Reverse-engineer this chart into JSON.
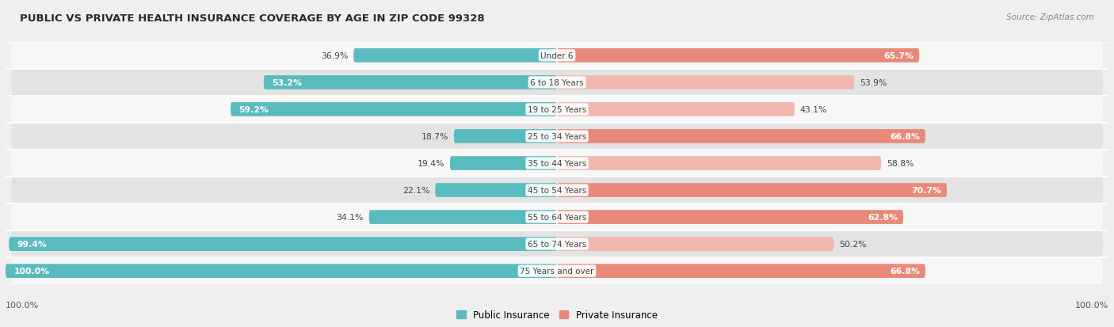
{
  "title": "PUBLIC VS PRIVATE HEALTH INSURANCE COVERAGE BY AGE IN ZIP CODE 99328",
  "source": "Source: ZipAtlas.com",
  "categories": [
    "Under 6",
    "6 to 18 Years",
    "19 to 25 Years",
    "25 to 34 Years",
    "35 to 44 Years",
    "45 to 54 Years",
    "55 to 64 Years",
    "65 to 74 Years",
    "75 Years and over"
  ],
  "public_values": [
    36.9,
    53.2,
    59.2,
    18.7,
    19.4,
    22.1,
    34.1,
    99.4,
    100.0
  ],
  "private_values": [
    65.7,
    53.9,
    43.1,
    66.8,
    58.8,
    70.7,
    62.8,
    50.2,
    66.8
  ],
  "public_color": "#59bbbe",
  "private_color": "#e8897a",
  "private_color_light": "#f0b8ae",
  "bg_color": "#efefef",
  "row_bg_light": "#f7f7f7",
  "row_bg_dark": "#e3e3e3",
  "label_dark": "#444444",
  "label_white": "#ffffff",
  "bar_height": 0.52,
  "x_left_label": "100.0%",
  "x_right_label": "100.0%",
  "legend_public": "Public Insurance",
  "legend_private": "Private Insurance"
}
